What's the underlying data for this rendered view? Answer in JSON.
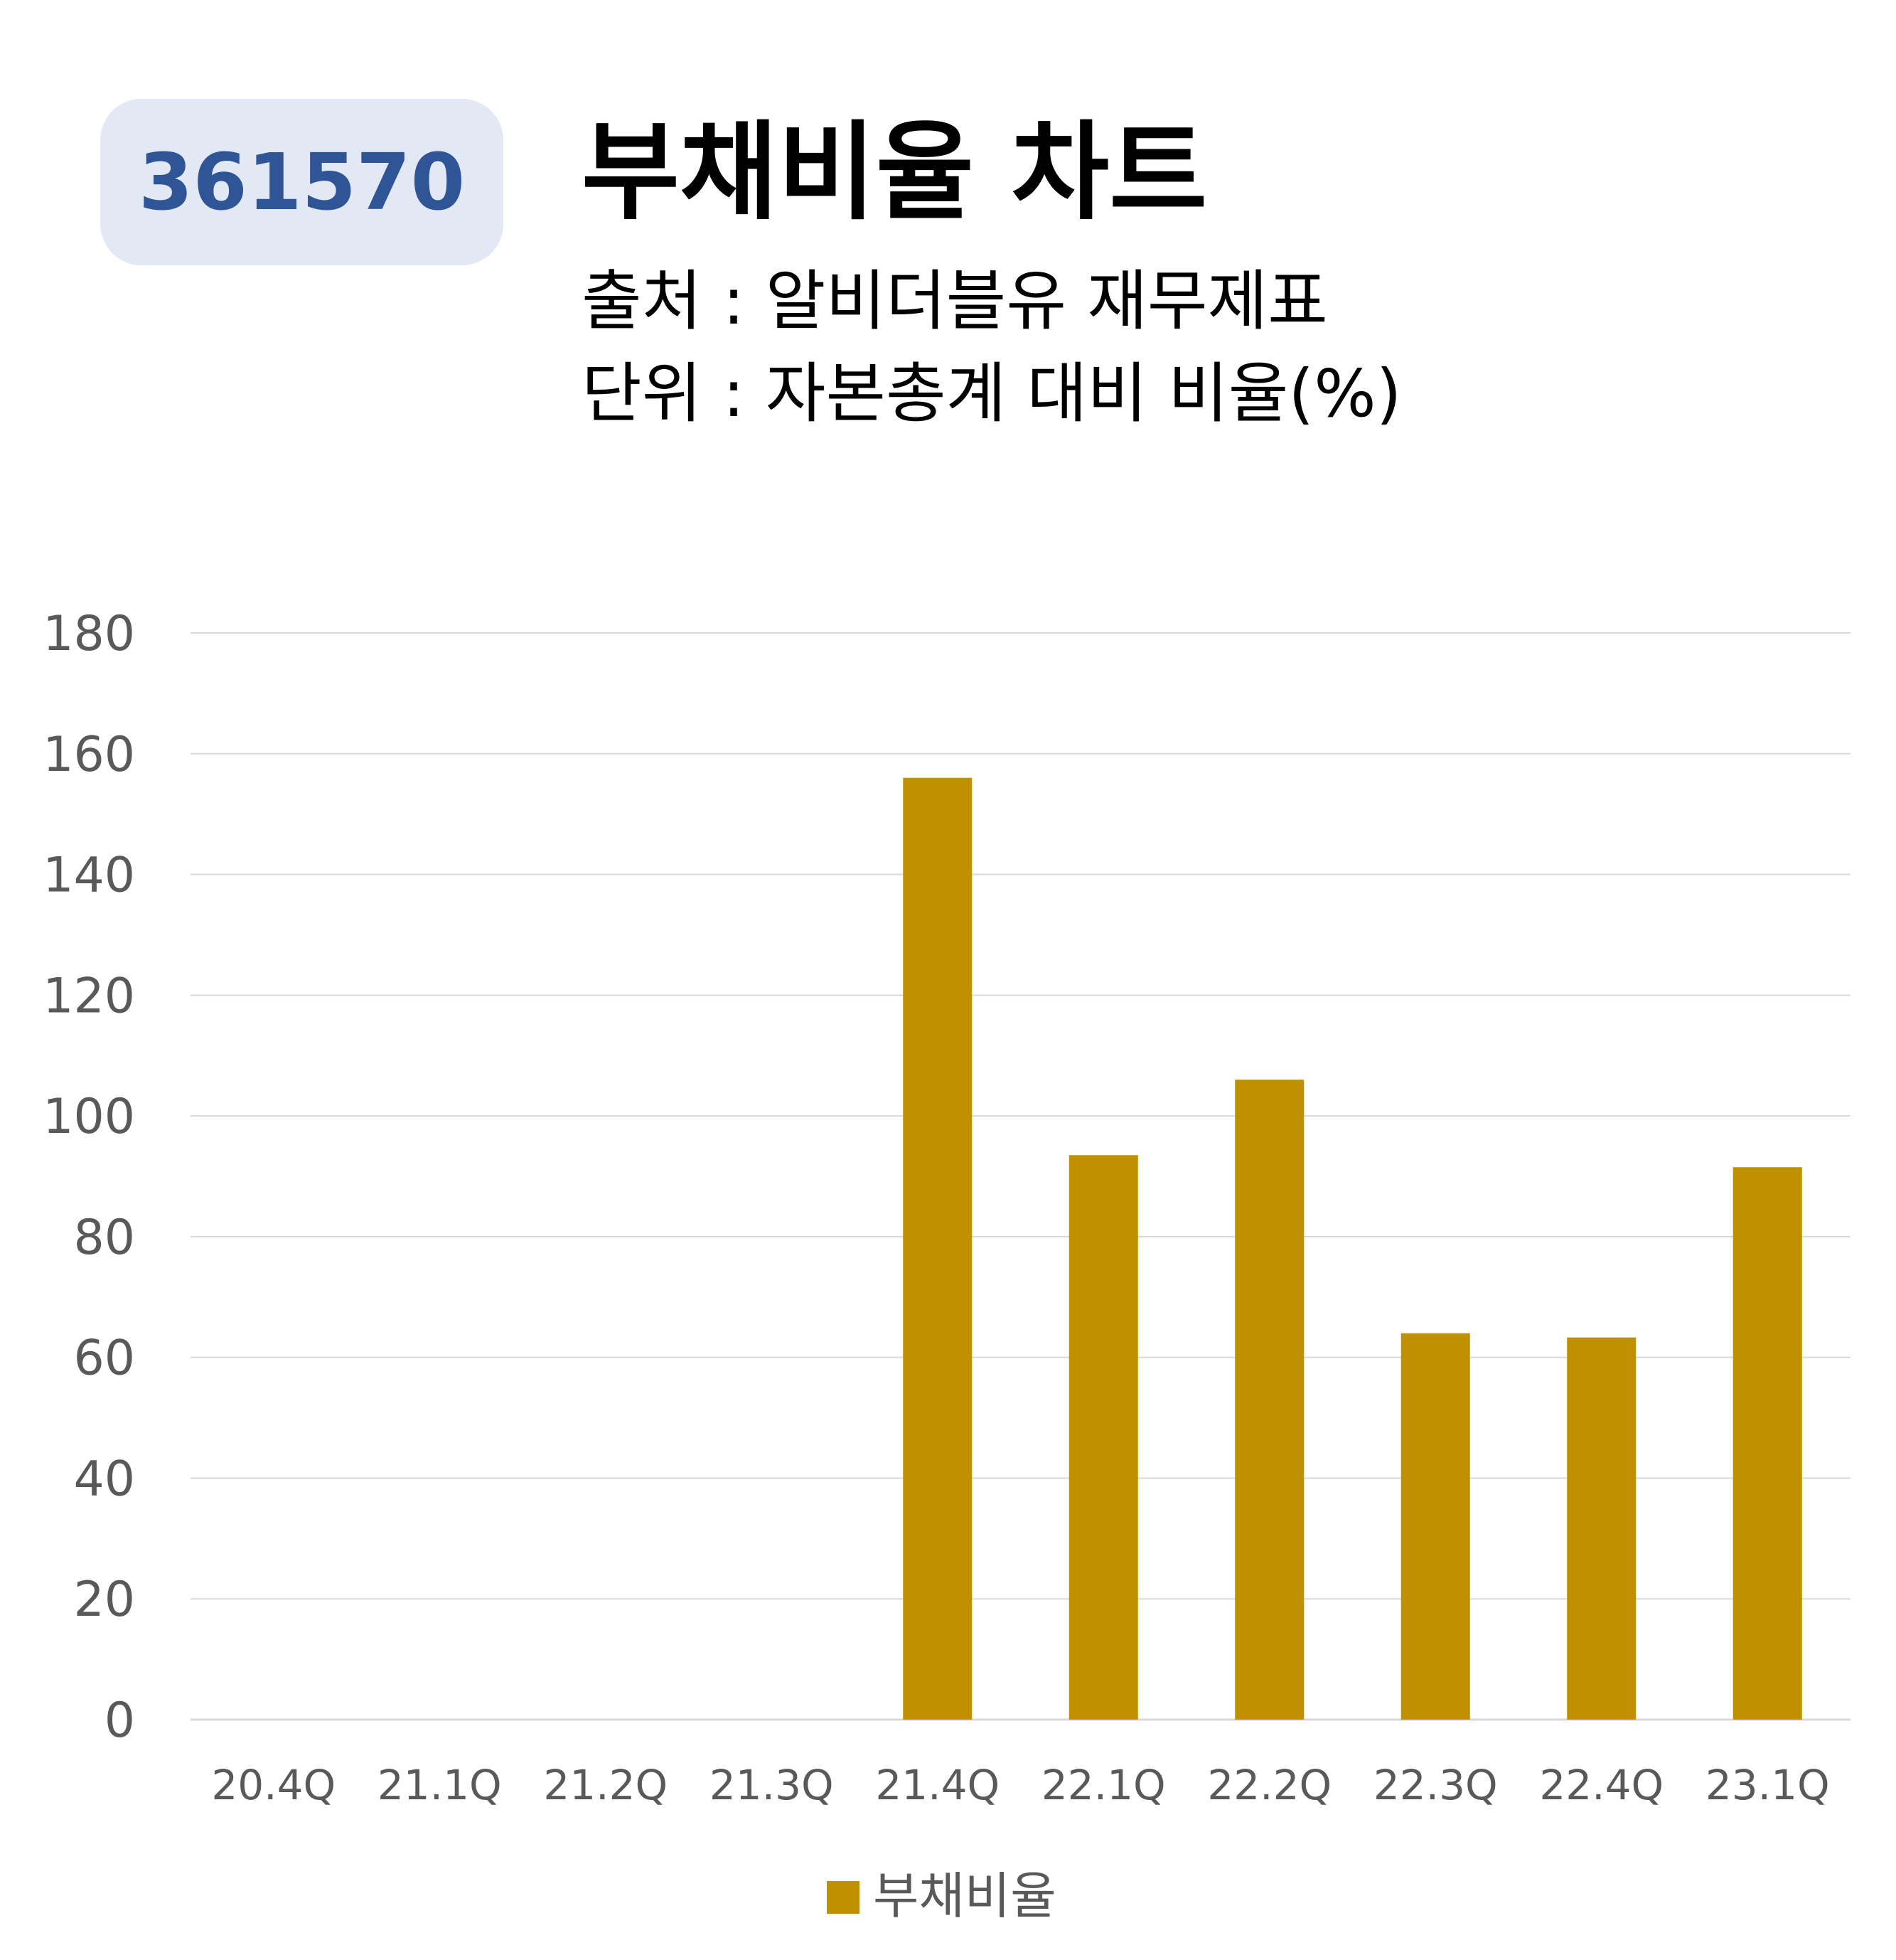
{
  "badge": {
    "code": "361570"
  },
  "header": {
    "title": "부채비율 차트",
    "source": "출처 : 알비더블유 재무제표",
    "unit": "단위 : 자본총계 대비 비율(%)"
  },
  "colors": {
    "bar": "#bf9000",
    "badge_bg": "#e3e8f5",
    "badge_text": "#2f5597",
    "grid": "#d9d9d9",
    "axis_text": "#595959"
  },
  "chart_data": {
    "type": "bar",
    "categories": [
      "20.4Q",
      "21.1Q",
      "21.2Q",
      "21.3Q",
      "21.4Q",
      "22.1Q",
      "22.2Q",
      "22.3Q",
      "22.4Q",
      "23.1Q"
    ],
    "series": [
      {
        "name": "부채비율",
        "values": [
          null,
          null,
          null,
          null,
          156,
          93.5,
          106,
          64,
          63.3,
          91.5
        ]
      }
    ],
    "ylim": [
      0,
      180
    ],
    "yticks": [
      0,
      20,
      40,
      60,
      80,
      100,
      120,
      140,
      160,
      180
    ],
    "grid": true,
    "legend": "bottom"
  }
}
